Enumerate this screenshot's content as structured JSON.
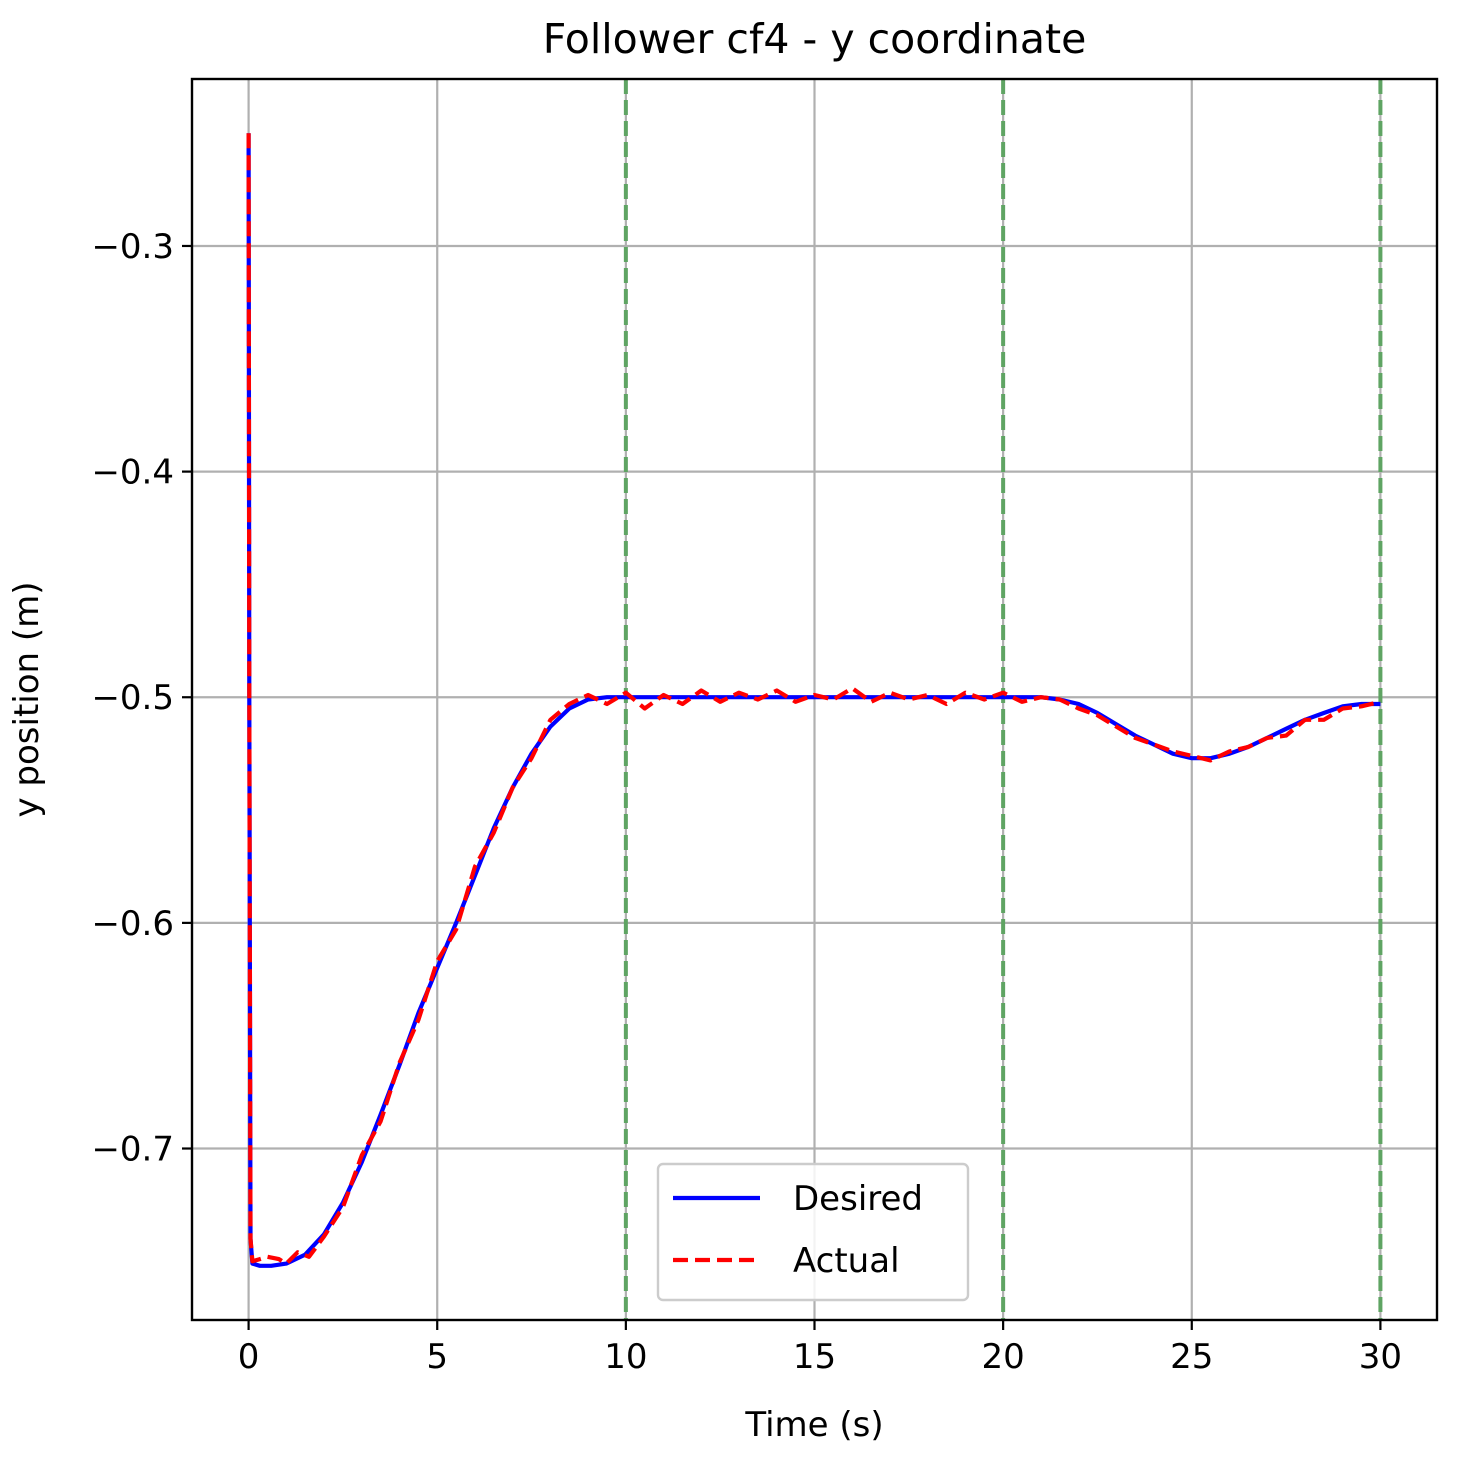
{
  "chart_data": {
    "type": "line",
    "title": "Follower cf4 - y coordinate",
    "xlabel": "Time (s)",
    "ylabel": "y position (m)",
    "xlim": [
      -1.5,
      31.5
    ],
    "ylim": [
      -0.776,
      -0.226
    ],
    "xticks": [
      0,
      5,
      10,
      15,
      20,
      25,
      30
    ],
    "xtick_labels": [
      "0",
      "5",
      "10",
      "15",
      "20",
      "25",
      "30"
    ],
    "yticks": [
      -0.3,
      -0.4,
      -0.5,
      -0.6,
      -0.7
    ],
    "ytick_labels": [
      "−0.3",
      "−0.4",
      "−0.5",
      "−0.6",
      "−0.7"
    ],
    "grid": true,
    "vlines": {
      "x": [
        10,
        20,
        30
      ],
      "color": "#5fa463",
      "style": "dashed"
    },
    "legend": {
      "position": "lower-center",
      "entries": [
        "Desired",
        "Actual"
      ]
    },
    "series": [
      {
        "name": "Desired",
        "color": "#0000ff",
        "style": "solid",
        "x": [
          0,
          0.02,
          0.05,
          0.1,
          0.3,
          0.6,
          1.0,
          1.5,
          2.0,
          2.5,
          3.0,
          3.5,
          4.0,
          4.5,
          5.0,
          5.5,
          6.0,
          6.5,
          7.0,
          7.5,
          8.0,
          8.5,
          9.0,
          9.5,
          10.0,
          11.0,
          12.0,
          13.0,
          14.0,
          15.0,
          16.0,
          17.0,
          18.0,
          19.0,
          20.0,
          21.0,
          21.5,
          22.0,
          22.5,
          23.0,
          23.5,
          24.0,
          24.5,
          25.0,
          25.5,
          26.0,
          26.5,
          27.0,
          27.5,
          28.0,
          28.5,
          29.0,
          29.5,
          30.0
        ],
        "y": [
          -0.25,
          -0.5,
          -0.74,
          -0.751,
          -0.752,
          -0.752,
          -0.751,
          -0.747,
          -0.738,
          -0.724,
          -0.706,
          -0.685,
          -0.663,
          -0.64,
          -0.62,
          -0.6,
          -0.579,
          -0.558,
          -0.54,
          -0.525,
          -0.513,
          -0.505,
          -0.501,
          -0.5,
          -0.5,
          -0.5,
          -0.5,
          -0.5,
          -0.5,
          -0.5,
          -0.5,
          -0.5,
          -0.5,
          -0.5,
          -0.5,
          -0.5,
          -0.501,
          -0.503,
          -0.507,
          -0.512,
          -0.517,
          -0.521,
          -0.525,
          -0.527,
          -0.527,
          -0.525,
          -0.522,
          -0.518,
          -0.514,
          -0.51,
          -0.507,
          -0.504,
          -0.503,
          -0.503
        ]
      },
      {
        "name": "Actual",
        "color": "#ff0000",
        "style": "dashed",
        "x": [
          0,
          0.02,
          0.05,
          0.1,
          0.3,
          0.5,
          0.8,
          1.0,
          1.3,
          1.6,
          2.0,
          2.5,
          3.0,
          3.5,
          4.0,
          4.5,
          5.0,
          5.5,
          6.0,
          6.5,
          7.0,
          7.5,
          8.0,
          8.5,
          9.0,
          9.5,
          10.0,
          10.5,
          11.0,
          11.5,
          12.0,
          12.5,
          13.0,
          13.5,
          14.0,
          14.5,
          15.0,
          15.5,
          16.0,
          16.5,
          17.0,
          17.5,
          18.0,
          18.5,
          19.0,
          19.5,
          20.0,
          20.5,
          21.0,
          21.5,
          22.0,
          22.5,
          23.0,
          23.5,
          24.0,
          24.5,
          25.0,
          25.5,
          26.0,
          26.5,
          27.0,
          27.5,
          28.0,
          28.5,
          29.0,
          29.5,
          30.0
        ],
        "y": [
          -0.25,
          -0.5,
          -0.74,
          -0.75,
          -0.749,
          -0.748,
          -0.749,
          -0.751,
          -0.746,
          -0.748,
          -0.739,
          -0.726,
          -0.703,
          -0.688,
          -0.662,
          -0.643,
          -0.617,
          -0.603,
          -0.575,
          -0.56,
          -0.54,
          -0.527,
          -0.51,
          -0.503,
          -0.499,
          -0.503,
          -0.498,
          -0.505,
          -0.499,
          -0.503,
          -0.497,
          -0.502,
          -0.498,
          -0.501,
          -0.497,
          -0.502,
          -0.499,
          -0.501,
          -0.496,
          -0.502,
          -0.498,
          -0.501,
          -0.499,
          -0.503,
          -0.498,
          -0.501,
          -0.498,
          -0.502,
          -0.5,
          -0.501,
          -0.505,
          -0.508,
          -0.513,
          -0.518,
          -0.521,
          -0.524,
          -0.526,
          -0.528,
          -0.524,
          -0.522,
          -0.518,
          -0.517,
          -0.51,
          -0.51,
          -0.505,
          -0.504,
          -0.502
        ]
      }
    ]
  }
}
